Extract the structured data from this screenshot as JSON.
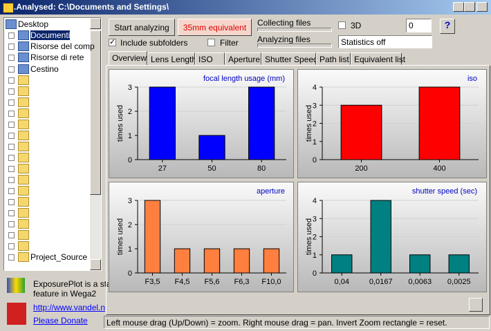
{
  "window": {
    "title": ".Analysed: C:\\Documents and Settings\\"
  },
  "tree": [
    "Desktop",
    "Documenti",
    "Risorse del comp",
    "Risorse di rete",
    "Cestino",
    "Project_Source"
  ],
  "info": {
    "line1": "ExposurePlot is a sta",
    "line2": "feature in Wega2",
    "link": "http://www.vandel.n",
    "donate": "Please Donate"
  },
  "toolbar": {
    "start": "Start analyzing",
    "equivalent": "35mm equivalent",
    "subfolders": "Include subfolders",
    "filter": "Filter",
    "collecting": "Collecting files",
    "analyzing": "Analyzing files",
    "three_d": "3D",
    "spinner": "0",
    "statistics": "Statistics off",
    "help": "?"
  },
  "tabs": [
    "Overview",
    "Lens Length",
    "ISO",
    "Aperture",
    "Shutter Speed",
    "Path list",
    "Equivalent list"
  ],
  "status": "Left mouse drag (Up/Down) = zoom. Right mouse drag = pan. Invert Zoom rectangle = reset.",
  "chart_data": [
    {
      "type": "bar",
      "title": "focal length usage (mm)",
      "y_label": "times used",
      "categories": [
        "27",
        "50",
        "80"
      ],
      "values": [
        3,
        1,
        3
      ],
      "color": "#0000ff",
      "ylim": [
        0,
        3
      ],
      "yticks": [
        0,
        1,
        2,
        3
      ],
      "grid": true
    },
    {
      "type": "bar",
      "title": "iso",
      "y_label": "times used",
      "categories": [
        "200",
        "400"
      ],
      "values": [
        3,
        4
      ],
      "color": "#ff0000",
      "ylim": [
        0,
        4
      ],
      "yticks": [
        0,
        1,
        2,
        3,
        4
      ],
      "grid": true
    },
    {
      "type": "bar",
      "title": "aperture",
      "y_label": "times used",
      "categories": [
        "F3,5",
        "F4,5",
        "F5,6",
        "F6,3",
        "F10,0"
      ],
      "values": [
        3,
        1,
        1,
        1,
        1
      ],
      "color": "#ff7f3f",
      "ylim": [
        0,
        3
      ],
      "yticks": [
        0,
        1,
        2,
        3
      ],
      "grid": true
    },
    {
      "type": "bar",
      "title": "shutter speed (sec)",
      "y_label": "times used",
      "categories": [
        "0,04",
        "0,0167",
        "0,0063",
        "0,0025"
      ],
      "values": [
        1,
        4,
        1,
        1
      ],
      "color": "#008080",
      "ylim": [
        0,
        4
      ],
      "yticks": [
        0,
        1,
        2,
        3,
        4
      ],
      "grid": true
    }
  ]
}
